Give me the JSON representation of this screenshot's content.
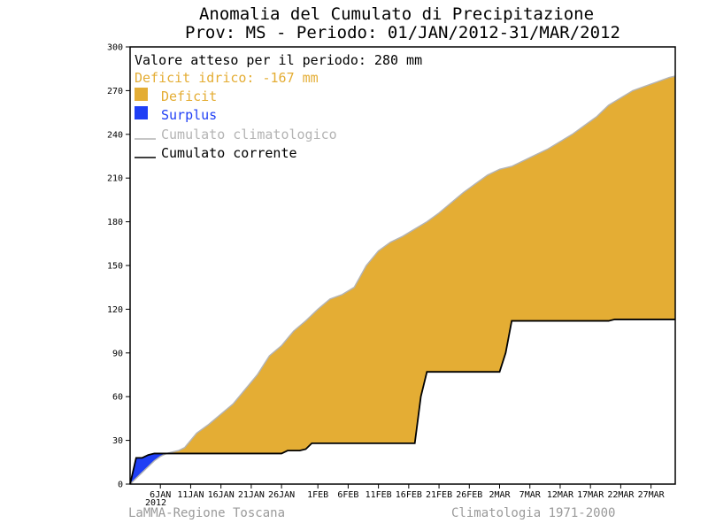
{
  "chart_data": {
    "type": "area",
    "title": "Anomalia del Cumulato di Precipitazione",
    "subtitle": "Prov: MS - Periodo: 01/JAN/2012-31/MAR/2012",
    "ylim": [
      0,
      300
    ],
    "yticks": [
      0,
      30,
      60,
      90,
      120,
      150,
      180,
      210,
      240,
      270,
      300
    ],
    "xlim": [
      1,
      91
    ],
    "xticks": [
      {
        "x": 6,
        "label": "6JAN"
      },
      {
        "x": 11,
        "label": "11JAN"
      },
      {
        "x": 16,
        "label": "16JAN"
      },
      {
        "x": 21,
        "label": "21JAN"
      },
      {
        "x": 26,
        "label": "26JAN"
      },
      {
        "x": 32,
        "label": "1FEB"
      },
      {
        "x": 37,
        "label": "6FEB"
      },
      {
        "x": 42,
        "label": "11FEB"
      },
      {
        "x": 47,
        "label": "16FEB"
      },
      {
        "x": 52,
        "label": "21FEB"
      },
      {
        "x": 57,
        "label": "26FEB"
      },
      {
        "x": 62,
        "label": "2MAR"
      },
      {
        "x": 67,
        "label": "7MAR"
      },
      {
        "x": 72,
        "label": "12MAR"
      },
      {
        "x": 77,
        "label": "17MAR"
      },
      {
        "x": 82,
        "label": "22MAR"
      },
      {
        "x": 87,
        "label": "27MAR"
      }
    ],
    "year_label": "2012",
    "series": [
      {
        "name": "Cumulato climatologico",
        "color": "#b4b4b4",
        "x": [
          1,
          2,
          3,
          4,
          5,
          6,
          7,
          8,
          9,
          10,
          11,
          12,
          14,
          16,
          18,
          20,
          22,
          24,
          26,
          28,
          30,
          32,
          34,
          36,
          38,
          40,
          42,
          44,
          46,
          48,
          50,
          52,
          54,
          56,
          58,
          60,
          62,
          64,
          66,
          68,
          70,
          72,
          74,
          76,
          78,
          80,
          82,
          84,
          86,
          88,
          90,
          91
        ],
        "values": [
          0,
          4,
          8,
          12,
          16,
          19,
          21,
          22,
          23,
          25,
          30,
          35,
          41,
          48,
          55,
          65,
          75,
          88,
          95,
          105,
          112,
          120,
          127,
          130,
          135,
          150,
          160,
          166,
          170,
          175,
          180,
          186,
          193,
          200,
          206,
          212,
          216,
          218,
          222,
          226,
          230,
          235,
          240,
          246,
          252,
          260,
          265,
          270,
          273,
          276,
          279,
          280
        ]
      },
      {
        "name": "Cumulato corrente",
        "color": "#000000",
        "x": [
          1,
          2,
          3,
          4,
          5,
          6,
          26,
          27,
          29,
          30,
          31,
          32,
          48,
          49,
          50,
          51,
          62,
          63,
          64,
          65,
          80,
          81,
          91
        ],
        "values": [
          0,
          18,
          18,
          20,
          21,
          21,
          21,
          23,
          23,
          24,
          28,
          28,
          28,
          60,
          77,
          77,
          77,
          90,
          112,
          112,
          112,
          113,
          113
        ]
      }
    ],
    "fills": [
      {
        "name": "Deficit",
        "color": "#e4ad34"
      },
      {
        "name": "Surplus",
        "color": "#1f3ff5"
      }
    ],
    "legend": {
      "expected_text": "Valore atteso per il periodo: 280 mm",
      "deficit_text": "Deficit idrico: -167 mm",
      "deficit_text_color": "#e4ad34",
      "deficit_label": "Deficit",
      "surplus_label": "Surplus",
      "clim_label": "Cumulato climatologico",
      "current_label": "Cumulato corrente",
      "placement": "top-left"
    },
    "footer_left": "LaMMA-Regione Toscana",
    "footer_right": "Climatologia 1971-2000"
  }
}
